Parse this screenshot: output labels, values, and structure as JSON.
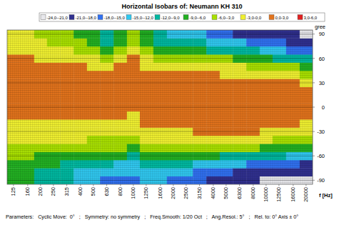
{
  "chart_data": {
    "type": "heatmap",
    "title": "Horizontal Isobars of:    Neumann  KH 310",
    "x_label": "f [Hz]",
    "y_label": "gree",
    "footer": "Parameters:   Cyclic Move:  0°   ;   Symmetry: no symmetry   ;   Freq.Smooth: 1/20 Oct   ;   Ang.Resol.: 5°   ;   Rel. to: 0° Axis ± 0°",
    "log": "x",
    "grid": true,
    "legend": "top",
    "xlim": [
      112,
      22400
    ],
    "ylim": [
      -95,
      95
    ],
    "xticks": [
      125,
      160,
      200,
      250,
      315,
      400,
      500,
      630,
      800,
      1000,
      1250,
      1600,
      2000,
      2500,
      3150,
      4000,
      5000,
      6300,
      8000,
      10000,
      12500,
      16000,
      20000
    ],
    "yticks": [
      -90,
      -60,
      -30,
      0,
      30,
      60,
      90
    ],
    "x": [
      125,
      160,
      200,
      250,
      315,
      400,
      500,
      630,
      800,
      1000,
      1250,
      1600,
      2000,
      2500,
      3150,
      4000,
      5000,
      6300,
      8000,
      10000,
      12500,
      16000,
      20000
    ],
    "y": [
      -90,
      -80,
      -70,
      -60,
      -50,
      -40,
      -30,
      -20,
      -10,
      0,
      10,
      20,
      30,
      40,
      50,
      60,
      70,
      80,
      90
    ],
    "cells": [
      [
        -8,
        -7.5,
        -6.5,
        -5,
        -3.5,
        -2.5,
        -1.5,
        -0.5,
        0.5,
        0,
        0.5,
        0.5,
        0.5,
        0.5,
        0.5,
        0.3,
        -1,
        -1.5,
        -2
      ],
      [
        -9,
        -8,
        -7,
        -5.5,
        -4,
        -2.5,
        -1.5,
        -0.5,
        0.5,
        0,
        0.5,
        0.5,
        0.5,
        0.5,
        0.5,
        0.2,
        -1,
        -2,
        -2.5
      ],
      [
        -10,
        -9.5,
        -8,
        -6.5,
        -4.5,
        -3,
        -1.5,
        -0.5,
        0.5,
        0,
        0.5,
        0.5,
        0.5,
        0.5,
        0.5,
        -0.5,
        -1.5,
        -2.5,
        -3.5
      ],
      [
        -11,
        -10.5,
        -9,
        -7,
        -4.5,
        -3,
        -1.5,
        -0.5,
        0.5,
        0,
        0.5,
        0.5,
        0.5,
        0.5,
        0.3,
        -1,
        -2,
        -3.5,
        -4.5
      ],
      [
        -12,
        -11,
        -9.5,
        -7.5,
        -5,
        -3,
        -1.5,
        -0.5,
        0.5,
        0,
        0.5,
        0.5,
        0.5,
        0.5,
        0.2,
        -1,
        -2.5,
        -4,
        -5
      ],
      [
        -13.5,
        -12.5,
        -10,
        -7.5,
        -5,
        -3,
        -1.5,
        -0.5,
        0.5,
        0,
        0.5,
        0.5,
        0.5,
        0.5,
        0.2,
        -1.5,
        -3.5,
        -5,
        -6.5
      ],
      [
        -15,
        -13.5,
        -11,
        -8,
        -5.5,
        -3.5,
        -2,
        -0.5,
        0.5,
        0,
        0.5,
        0.5,
        0.5,
        0.4,
        -0.5,
        -2.5,
        -5,
        -7,
        -8
      ],
      [
        -16,
        -14.5,
        -12,
        -8.5,
        -5.5,
        -3.5,
        -2,
        -0.5,
        0.5,
        0,
        0.5,
        0.5,
        0.5,
        0.3,
        -1,
        -3.5,
        -6.5,
        -9.5,
        -10.5
      ],
      [
        -16,
        -15,
        -12.5,
        -9,
        -6,
        -4,
        -2.5,
        -1,
        0.5,
        0,
        0.5,
        0.5,
        0.5,
        0.4,
        0.2,
        -1.5,
        -4,
        -6.5,
        -8
      ],
      [
        -16,
        -15,
        -13,
        -9.5,
        -6.5,
        -4.5,
        -3,
        -1.5,
        -0.5,
        0,
        0.5,
        0.5,
        0.5,
        0.5,
        0.4,
        0.2,
        -2,
        -4,
        -5.5
      ],
      [
        -14,
        -13,
        -11,
        -8,
        -5,
        -3,
        -1,
        0.3,
        0.5,
        0,
        0.5,
        0.5,
        0.5,
        0.3,
        -1,
        -3,
        -5,
        -7,
        -8
      ],
      [
        -15,
        -14,
        -11,
        -8,
        -5,
        -2.5,
        -0.5,
        0.3,
        0.5,
        0,
        0.5,
        0.5,
        0.5,
        0.2,
        -1.5,
        -4,
        -7,
        -10,
        -11
      ],
      [
        -16,
        -14.5,
        -11.5,
        -8,
        -5,
        -2.5,
        -0.5,
        0.5,
        0.5,
        0,
        0.5,
        0.5,
        0.5,
        0.2,
        -1.5,
        -4,
        -7.5,
        -10.5,
        -12.5
      ],
      [
        -17,
        -15,
        -12,
        -8.5,
        -5,
        -2.5,
        -0.3,
        0.5,
        0.5,
        0,
        0.5,
        0.5,
        0.5,
        0.2,
        -2,
        -5,
        -8,
        -11,
        -13
      ],
      [
        -18,
        -16,
        -12.5,
        -8.5,
        -5,
        -2,
        0.2,
        0.5,
        0.5,
        0,
        0.5,
        0.5,
        0.5,
        0.1,
        -2,
        -5,
        -8.5,
        -12,
        -14
      ],
      [
        -19,
        -17,
        -13,
        -9,
        -5.5,
        -2,
        0.2,
        0.5,
        0.5,
        0,
        0.5,
        0.5,
        0.5,
        0.1,
        -2,
        -5.5,
        -9.5,
        -13,
        -16
      ],
      [
        -20,
        -18,
        -14,
        -9.5,
        -5.5,
        -2,
        0.2,
        0.5,
        0.5,
        0,
        0.5,
        0.5,
        0.5,
        -0.5,
        -2.5,
        -6,
        -10,
        -14,
        -17
      ],
      [
        -20.5,
        -19,
        -15,
        -10,
        -6,
        -2.5,
        0.1,
        0.5,
        0.5,
        0,
        0.5,
        0.5,
        0.5,
        -0.5,
        -3,
        -7,
        -11,
        -15,
        -18.5
      ],
      [
        -21,
        -19.5,
        -15.5,
        -10.5,
        -6,
        -2.5,
        0.1,
        0.5,
        0.5,
        0,
        0.5,
        0.5,
        0.5,
        -0.5,
        -3.5,
        -7.5,
        -12,
        -16,
        -19.5
      ],
      [
        -21.5,
        -20,
        -16,
        -11,
        -6.5,
        -3,
        -0.3,
        0.5,
        0.5,
        0,
        0.5,
        0.5,
        0.3,
        -1,
        -4,
        -8,
        -13,
        -17,
        -20
      ],
      [
        -22,
        -20.5,
        -17,
        -12,
        -7,
        -3.5,
        -0.5,
        0.5,
        0.5,
        0,
        0.5,
        0.5,
        0.2,
        -1.5,
        -5,
        -9.5,
        -14,
        -18,
        -20.5
      ],
      [
        -22,
        -21,
        -18,
        -13,
        -8,
        -4,
        -1,
        0.3,
        0.5,
        0,
        0.5,
        0.5,
        0.1,
        -2,
        -6,
        -11,
        -15.5,
        -19,
        -21
      ],
      [
        -22,
        -21,
        -18.5,
        -14,
        -9,
        -5,
        -2,
        -0.5,
        0.5,
        0,
        0.5,
        0.3,
        -1,
        -3.5,
        -7,
        -12,
        -16,
        -19.5,
        -22
      ]
    ],
    "colorbar_range": [
      -24,
      6
    ],
    "colorbar_ticks": [
      -24,
      -21,
      -18,
      -15,
      -12,
      -9,
      -6,
      -3,
      0,
      3,
      6
    ],
    "colorbar_labels": [
      "-24,0--21,0",
      "-21,0--18,0",
      "-18,0--15,0",
      "-15,0--12,0",
      "-12,0--9,0",
      "-9,0--6,0",
      "-6,0--3,0",
      "-3,0-0,0",
      "0,0-3,0",
      "3,0-6,0"
    ],
    "colors": [
      "#e8e8ec",
      "#30308f",
      "#3070f0",
      "#30c8f0",
      "#00b8a0",
      "#22b022",
      "#a8e000",
      "#f0f030",
      "#e2731c",
      "#e02020"
    ]
  }
}
